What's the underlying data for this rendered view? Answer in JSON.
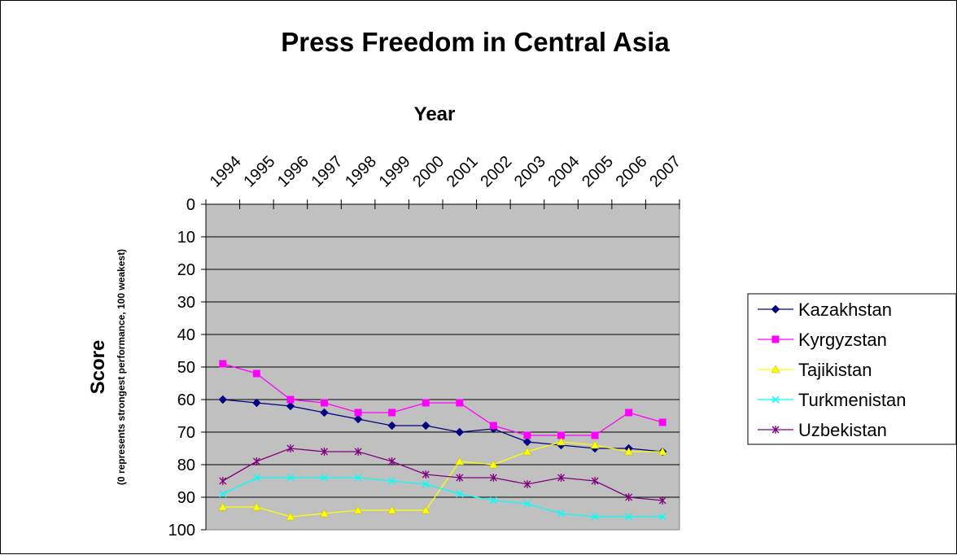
{
  "chart_data": {
    "type": "line",
    "title": "Press Freedom in Central Asia",
    "xlabel": "Year",
    "ylabel": "Score",
    "ylabel_sub": "(0 represents strongest performance, 100 weakest)",
    "categories": [
      "1994",
      "1995",
      "1996",
      "1997",
      "1998",
      "1999",
      "2000",
      "2001",
      "2002",
      "2003",
      "2004",
      "2005",
      "2006",
      "2007"
    ],
    "y_ticks": [
      "0",
      "10",
      "20",
      "30",
      "40",
      "50",
      "60",
      "70",
      "80",
      "90",
      "100"
    ],
    "ylim": [
      0,
      100
    ],
    "y_reversed": true,
    "x_axis_position": "top",
    "grid": true,
    "plot_background": "#c0c0c0",
    "legend_position": "right",
    "series": [
      {
        "name": "Kazakhstan",
        "color": "#000080",
        "marker": "diamond",
        "values": [
          60,
          61,
          62,
          64,
          66,
          68,
          68,
          70,
          69,
          73,
          74,
          75,
          75,
          76
        ]
      },
      {
        "name": "Kyrgyzstan",
        "color": "#ff00ff",
        "marker": "square",
        "values": [
          49,
          52,
          60,
          61,
          64,
          64,
          61,
          61,
          68,
          71,
          71,
          71,
          64,
          67
        ]
      },
      {
        "name": "Tajikistan",
        "color": "#ffff00",
        "marker": "triangle",
        "values": [
          93,
          93,
          96,
          95,
          94,
          94,
          94,
          79,
          80,
          76,
          73,
          74,
          76,
          76
        ]
      },
      {
        "name": "Turkmenistan",
        "color": "#00ffff",
        "marker": "x",
        "values": [
          89,
          84,
          84,
          84,
          84,
          85,
          86,
          89,
          91,
          92,
          95,
          96,
          96,
          96
        ]
      },
      {
        "name": "Uzbekistan",
        "color": "#800080",
        "marker": "star",
        "values": [
          85,
          79,
          75,
          76,
          76,
          79,
          83,
          84,
          84,
          86,
          84,
          85,
          90,
          91
        ]
      }
    ]
  }
}
